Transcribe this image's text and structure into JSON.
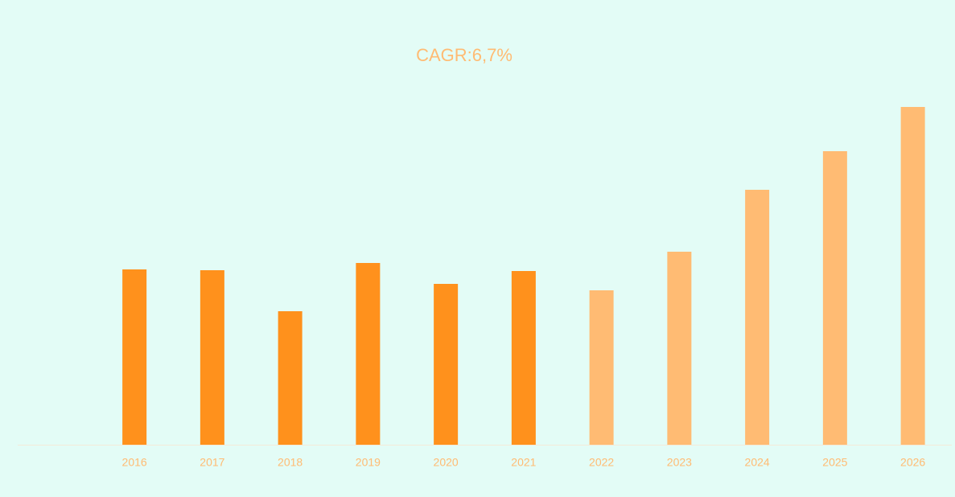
{
  "chart_data": {
    "type": "bar",
    "title": "CAGR:6,7%",
    "categories": [
      null,
      "2016",
      "2017",
      "2018",
      "2019",
      "2020",
      "2021",
      "2022",
      "2023",
      "2024",
      "2025",
      "2026"
    ],
    "values": [
      null,
      218,
      217,
      166,
      226,
      200,
      216,
      192,
      240,
      317,
      365,
      420
    ],
    "colors": [
      null,
      "#ff911c",
      "#ff911c",
      "#ff911c",
      "#ff911c",
      "#ff911c",
      "#ff911c",
      "#ffbb73",
      "#ffbb73",
      "#ffbb73",
      "#ffbb73",
      "#ffbb73"
    ],
    "ylim": [
      0,
      450
    ],
    "grid": false
  }
}
